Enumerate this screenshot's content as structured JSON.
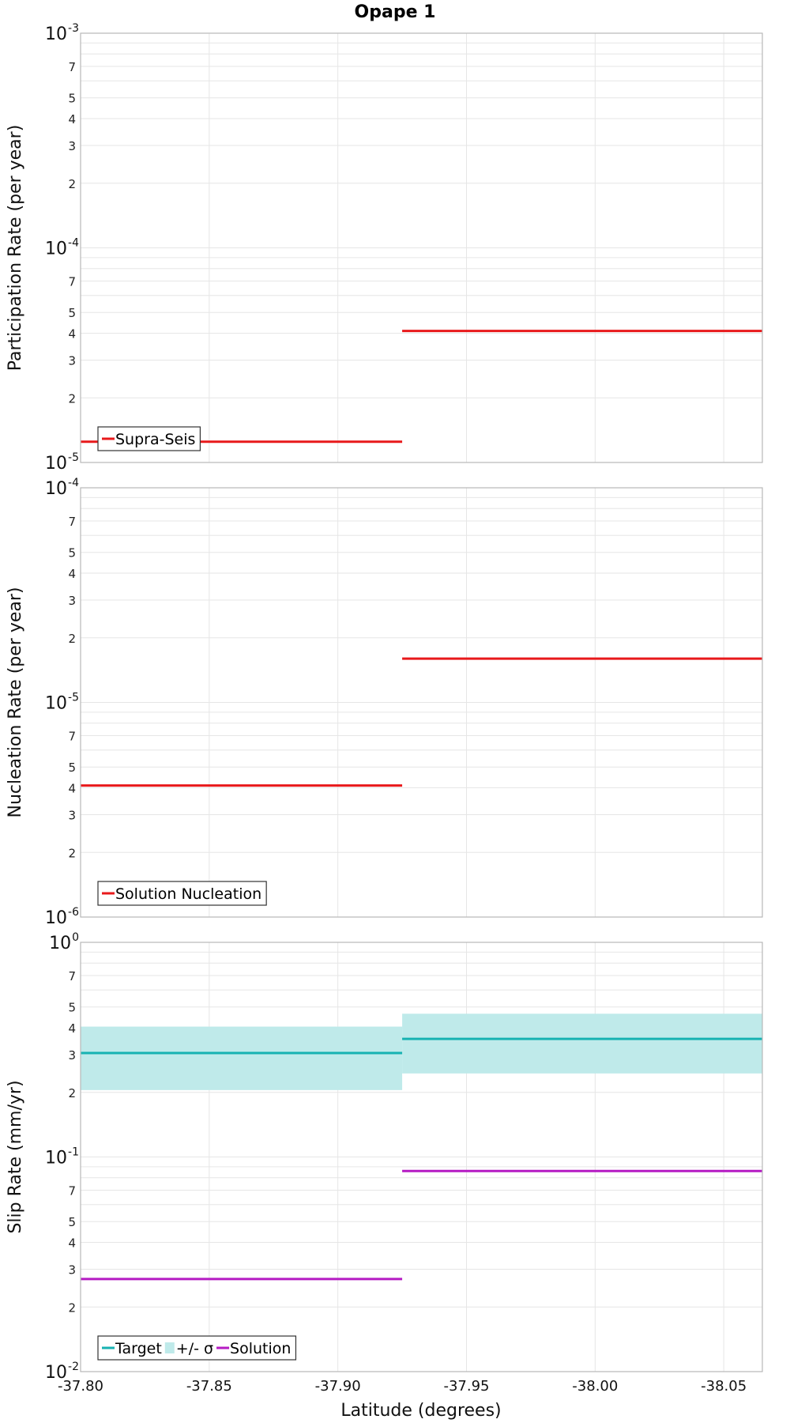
{
  "chart_data": {
    "type": "line",
    "title": "Opape 1",
    "xlabel": "Latitude (degrees)",
    "xlim": [
      -37.8,
      -38.065
    ],
    "x_ticks": [
      "-37.80",
      "-37.85",
      "-37.90",
      "-37.95",
      "-38.00",
      "-38.05"
    ],
    "x_tick_values": [
      -37.8,
      -37.85,
      -37.9,
      -37.95,
      -38.0,
      -38.05
    ],
    "panels": [
      {
        "id": "participation",
        "ylabel": "Participation Rate (per year)",
        "yscale": "log",
        "ylim": [
          1e-05,
          0.001
        ],
        "major_exponents": [
          -5,
          -4,
          -3
        ],
        "legend": [
          {
            "name": "Supra-Seis",
            "kind": "line",
            "color": "#e8191b"
          }
        ],
        "series": [
          {
            "name": "Supra-Seis",
            "kind": "step",
            "color": "#e8191b",
            "segments": [
              {
                "x": [
                  -37.8,
                  -37.925
                ],
                "y": 1.25e-05
              },
              {
                "x": [
                  -37.925,
                  -38.065
                ],
                "y": 4.1e-05
              }
            ]
          }
        ]
      },
      {
        "id": "nucleation",
        "ylabel": "Nucleation Rate (per year)",
        "yscale": "log",
        "ylim": [
          1e-06,
          0.0001
        ],
        "major_exponents": [
          -6,
          -5,
          -4
        ],
        "legend": [
          {
            "name": "Solution Nucleation",
            "kind": "line",
            "color": "#e8191b"
          }
        ],
        "series": [
          {
            "name": "Solution Nucleation",
            "kind": "step",
            "color": "#e8191b",
            "segments": [
              {
                "x": [
                  -37.8,
                  -37.925
                ],
                "y": 4.1e-06
              },
              {
                "x": [
                  -37.925,
                  -38.065
                ],
                "y": 1.6e-05
              }
            ]
          }
        ]
      },
      {
        "id": "slip",
        "ylabel": "Slip Rate (mm/yr)",
        "yscale": "log",
        "ylim": [
          0.01,
          1
        ],
        "major_exponents": [
          -2,
          -1,
          0
        ],
        "legend": [
          {
            "name": "Target",
            "kind": "line",
            "color": "#17b2b2"
          },
          {
            "name": "+/- σ",
            "kind": "band",
            "color": "#bfeaea"
          },
          {
            "name": "Solution",
            "kind": "line",
            "color": "#b51bc3"
          }
        ],
        "bands": [
          {
            "name": "+/- σ",
            "color": "#bfeaea",
            "segments": [
              {
                "x": [
                  -37.8,
                  -37.925
                ],
                "low": 0.205,
                "high": 0.405
              },
              {
                "x": [
                  -37.925,
                  -38.065
                ],
                "low": 0.245,
                "high": 0.465
              }
            ]
          }
        ],
        "series": [
          {
            "name": "Target",
            "kind": "step",
            "color": "#17b2b2",
            "segments": [
              {
                "x": [
                  -37.8,
                  -37.925
                ],
                "y": 0.305
              },
              {
                "x": [
                  -37.925,
                  -38.065
                ],
                "y": 0.355
              }
            ]
          },
          {
            "name": "Solution",
            "kind": "step",
            "color": "#b51bc3",
            "segments": [
              {
                "x": [
                  -37.8,
                  -37.925
                ],
                "y": 0.027
              },
              {
                "x": [
                  -37.925,
                  -38.065
                ],
                "y": 0.086
              }
            ]
          }
        ]
      }
    ]
  }
}
